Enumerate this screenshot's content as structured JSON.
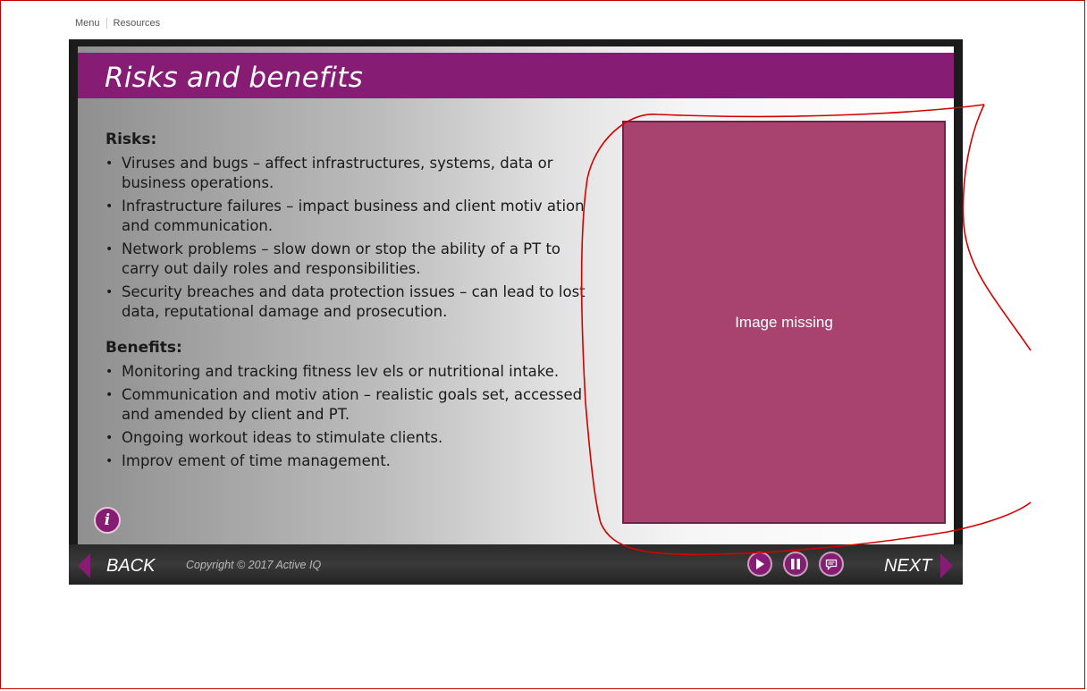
{
  "topnav": {
    "menu": "Menu",
    "resources": "Resources"
  },
  "slide": {
    "title": "Risks and benefits",
    "risks_heading": "Risks:",
    "risks": [
      "Viruses and bugs – affect infrastructures, systems, data or business operations.",
      "Infrastructure failures – impact business and client motiv ation and communication.",
      "Network problems – slow down or stop the ability of a PT to carry out daily roles and responsibilities.",
      "Security breaches and data protection issues – can lead to lost data, reputational damage and prosecution."
    ],
    "benefits_heading": "Benefits:",
    "benefits": [
      "Monitoring and tracking fitness lev els or nutritional intake.",
      "Communication and motiv ation – realistic goals set, accessed and amended by client and PT.",
      "Ongoing workout ideas to stimulate clients.",
      "Improv ement of time management."
    ],
    "image_placeholder": "Image missing",
    "info_icon": "i"
  },
  "footer": {
    "back": "BACK",
    "copyright": "Copyright © 2017 Active IQ",
    "next": "NEXT"
  },
  "colors": {
    "brand_purple": "#861c74",
    "image_fill": "#a7436e",
    "annotation_red": "#d40000"
  },
  "icons": [
    "back-arrow-icon",
    "next-arrow-icon",
    "play-icon",
    "pause-icon",
    "notes-icon",
    "info-icon"
  ]
}
